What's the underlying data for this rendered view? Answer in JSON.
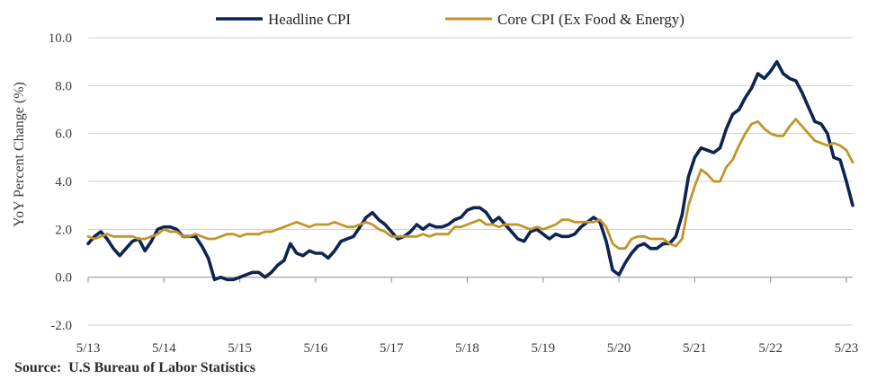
{
  "chart_data": {
    "type": "line",
    "ylabel": "YoY Percent Change (%)",
    "xlabel": "",
    "ylim": [
      -2.0,
      10.0
    ],
    "yticks": [
      -2.0,
      0.0,
      2.0,
      4.0,
      6.0,
      8.0,
      10.0
    ],
    "ytick_labels": [
      "-2.0",
      "0.0",
      "2.0",
      "4.0",
      "6.0",
      "8.0",
      "10.0"
    ],
    "xlim": [
      "2013-05",
      "2023-06"
    ],
    "xticks": [
      "2013-05",
      "2014-05",
      "2015-05",
      "2016-05",
      "2017-05",
      "2018-05",
      "2019-05",
      "2020-05",
      "2021-05",
      "2022-05",
      "2023-05"
    ],
    "xtick_labels": [
      "5/13",
      "5/14",
      "5/15",
      "5/16",
      "5/17",
      "5/18",
      "5/19",
      "5/20",
      "5/21",
      "5/22",
      "5/23"
    ],
    "grid": "horizontal",
    "legend": "top",
    "series": [
      {
        "name": "Headline CPI",
        "color": "#0d2452",
        "points": [
          [
            "2013-05",
            1.4
          ],
          [
            "2013-06",
            1.7
          ],
          [
            "2013-07",
            1.9
          ],
          [
            "2013-08",
            1.6
          ],
          [
            "2013-09",
            1.2
          ],
          [
            "2013-10",
            0.9
          ],
          [
            "2013-11",
            1.2
          ],
          [
            "2013-12",
            1.5
          ],
          [
            "2014-01",
            1.6
          ],
          [
            "2014-02",
            1.1
          ],
          [
            "2014-03",
            1.5
          ],
          [
            "2014-04",
            2.0
          ],
          [
            "2014-05",
            2.1
          ],
          [
            "2014-06",
            2.1
          ],
          [
            "2014-07",
            2.0
          ],
          [
            "2014-08",
            1.7
          ],
          [
            "2014-09",
            1.7
          ],
          [
            "2014-10",
            1.7
          ],
          [
            "2014-11",
            1.3
          ],
          [
            "2014-12",
            0.8
          ],
          [
            "2015-01",
            -0.1
          ],
          [
            "2015-02",
            0.0
          ],
          [
            "2015-03",
            -0.1
          ],
          [
            "2015-04",
            -0.1
          ],
          [
            "2015-05",
            0.0
          ],
          [
            "2015-06",
            0.1
          ],
          [
            "2015-07",
            0.2
          ],
          [
            "2015-08",
            0.2
          ],
          [
            "2015-09",
            0.0
          ],
          [
            "2015-10",
            0.2
          ],
          [
            "2015-11",
            0.5
          ],
          [
            "2015-12",
            0.7
          ],
          [
            "2016-01",
            1.4
          ],
          [
            "2016-02",
            1.0
          ],
          [
            "2016-03",
            0.9
          ],
          [
            "2016-04",
            1.1
          ],
          [
            "2016-05",
            1.0
          ],
          [
            "2016-06",
            1.0
          ],
          [
            "2016-07",
            0.8
          ],
          [
            "2016-08",
            1.1
          ],
          [
            "2016-09",
            1.5
          ],
          [
            "2016-10",
            1.6
          ],
          [
            "2016-11",
            1.7
          ],
          [
            "2016-12",
            2.1
          ],
          [
            "2017-01",
            2.5
          ],
          [
            "2017-02",
            2.7
          ],
          [
            "2017-03",
            2.4
          ],
          [
            "2017-04",
            2.2
          ],
          [
            "2017-05",
            1.9
          ],
          [
            "2017-06",
            1.6
          ],
          [
            "2017-07",
            1.7
          ],
          [
            "2017-08",
            1.9
          ],
          [
            "2017-09",
            2.2
          ],
          [
            "2017-10",
            2.0
          ],
          [
            "2017-11",
            2.2
          ],
          [
            "2017-12",
            2.1
          ],
          [
            "2018-01",
            2.1
          ],
          [
            "2018-02",
            2.2
          ],
          [
            "2018-03",
            2.4
          ],
          [
            "2018-04",
            2.5
          ],
          [
            "2018-05",
            2.8
          ],
          [
            "2018-06",
            2.9
          ],
          [
            "2018-07",
            2.9
          ],
          [
            "2018-08",
            2.7
          ],
          [
            "2018-09",
            2.3
          ],
          [
            "2018-10",
            2.5
          ],
          [
            "2018-11",
            2.2
          ],
          [
            "2018-12",
            1.9
          ],
          [
            "2019-01",
            1.6
          ],
          [
            "2019-02",
            1.5
          ],
          [
            "2019-03",
            1.9
          ],
          [
            "2019-04",
            2.0
          ],
          [
            "2019-05",
            1.8
          ],
          [
            "2019-06",
            1.6
          ],
          [
            "2019-07",
            1.8
          ],
          [
            "2019-08",
            1.7
          ],
          [
            "2019-09",
            1.7
          ],
          [
            "2019-10",
            1.8
          ],
          [
            "2019-11",
            2.1
          ],
          [
            "2019-12",
            2.3
          ],
          [
            "2020-01",
            2.5
          ],
          [
            "2020-02",
            2.3
          ],
          [
            "2020-03",
            1.5
          ],
          [
            "2020-04",
            0.3
          ],
          [
            "2020-05",
            0.1
          ],
          [
            "2020-06",
            0.6
          ],
          [
            "2020-07",
            1.0
          ],
          [
            "2020-08",
            1.3
          ],
          [
            "2020-09",
            1.4
          ],
          [
            "2020-10",
            1.2
          ],
          [
            "2020-11",
            1.2
          ],
          [
            "2020-12",
            1.4
          ],
          [
            "2021-01",
            1.4
          ],
          [
            "2021-02",
            1.7
          ],
          [
            "2021-03",
            2.6
          ],
          [
            "2021-04",
            4.2
          ],
          [
            "2021-05",
            5.0
          ],
          [
            "2021-06",
            5.4
          ],
          [
            "2021-07",
            5.3
          ],
          [
            "2021-08",
            5.2
          ],
          [
            "2021-09",
            5.4
          ],
          [
            "2021-10",
            6.2
          ],
          [
            "2021-11",
            6.8
          ],
          [
            "2021-12",
            7.0
          ],
          [
            "2022-01",
            7.5
          ],
          [
            "2022-02",
            7.9
          ],
          [
            "2022-03",
            8.5
          ],
          [
            "2022-04",
            8.3
          ],
          [
            "2022-05",
            8.6
          ],
          [
            "2022-06",
            9.0
          ],
          [
            "2022-07",
            8.5
          ],
          [
            "2022-08",
            8.3
          ],
          [
            "2022-09",
            8.2
          ],
          [
            "2022-10",
            7.7
          ],
          [
            "2022-11",
            7.1
          ],
          [
            "2022-12",
            6.5
          ],
          [
            "2023-01",
            6.4
          ],
          [
            "2023-02",
            6.0
          ],
          [
            "2023-03",
            5.0
          ],
          [
            "2023-04",
            4.9
          ],
          [
            "2023-05",
            4.0
          ],
          [
            "2023-06",
            3.0
          ]
        ]
      },
      {
        "name": "Core CPI (Ex Food & Energy)",
        "color": "#c39429",
        "points": [
          [
            "2013-05",
            1.7
          ],
          [
            "2013-06",
            1.6
          ],
          [
            "2013-07",
            1.7
          ],
          [
            "2013-08",
            1.8
          ],
          [
            "2013-09",
            1.7
          ],
          [
            "2013-10",
            1.7
          ],
          [
            "2013-11",
            1.7
          ],
          [
            "2013-12",
            1.7
          ],
          [
            "2014-01",
            1.6
          ],
          [
            "2014-02",
            1.6
          ],
          [
            "2014-03",
            1.7
          ],
          [
            "2014-04",
            1.8
          ],
          [
            "2014-05",
            2.0
          ],
          [
            "2014-06",
            1.9
          ],
          [
            "2014-07",
            1.9
          ],
          [
            "2014-08",
            1.7
          ],
          [
            "2014-09",
            1.7
          ],
          [
            "2014-10",
            1.8
          ],
          [
            "2014-11",
            1.7
          ],
          [
            "2014-12",
            1.6
          ],
          [
            "2015-01",
            1.6
          ],
          [
            "2015-02",
            1.7
          ],
          [
            "2015-03",
            1.8
          ],
          [
            "2015-04",
            1.8
          ],
          [
            "2015-05",
            1.7
          ],
          [
            "2015-06",
            1.8
          ],
          [
            "2015-07",
            1.8
          ],
          [
            "2015-08",
            1.8
          ],
          [
            "2015-09",
            1.9
          ],
          [
            "2015-10",
            1.9
          ],
          [
            "2015-11",
            2.0
          ],
          [
            "2015-12",
            2.1
          ],
          [
            "2016-01",
            2.2
          ],
          [
            "2016-02",
            2.3
          ],
          [
            "2016-03",
            2.2
          ],
          [
            "2016-04",
            2.1
          ],
          [
            "2016-05",
            2.2
          ],
          [
            "2016-06",
            2.2
          ],
          [
            "2016-07",
            2.2
          ],
          [
            "2016-08",
            2.3
          ],
          [
            "2016-09",
            2.2
          ],
          [
            "2016-10",
            2.1
          ],
          [
            "2016-11",
            2.1
          ],
          [
            "2016-12",
            2.2
          ],
          [
            "2017-01",
            2.3
          ],
          [
            "2017-02",
            2.2
          ],
          [
            "2017-03",
            2.0
          ],
          [
            "2017-04",
            1.9
          ],
          [
            "2017-05",
            1.7
          ],
          [
            "2017-06",
            1.7
          ],
          [
            "2017-07",
            1.7
          ],
          [
            "2017-08",
            1.7
          ],
          [
            "2017-09",
            1.7
          ],
          [
            "2017-10",
            1.8
          ],
          [
            "2017-11",
            1.7
          ],
          [
            "2017-12",
            1.8
          ],
          [
            "2018-01",
            1.8
          ],
          [
            "2018-02",
            1.8
          ],
          [
            "2018-03",
            2.1
          ],
          [
            "2018-04",
            2.1
          ],
          [
            "2018-05",
            2.2
          ],
          [
            "2018-06",
            2.3
          ],
          [
            "2018-07",
            2.4
          ],
          [
            "2018-08",
            2.2
          ],
          [
            "2018-09",
            2.2
          ],
          [
            "2018-10",
            2.1
          ],
          [
            "2018-11",
            2.2
          ],
          [
            "2018-12",
            2.2
          ],
          [
            "2019-01",
            2.2
          ],
          [
            "2019-02",
            2.1
          ],
          [
            "2019-03",
            2.0
          ],
          [
            "2019-04",
            2.1
          ],
          [
            "2019-05",
            2.0
          ],
          [
            "2019-06",
            2.1
          ],
          [
            "2019-07",
            2.2
          ],
          [
            "2019-08",
            2.4
          ],
          [
            "2019-09",
            2.4
          ],
          [
            "2019-10",
            2.3
          ],
          [
            "2019-11",
            2.3
          ],
          [
            "2019-12",
            2.3
          ],
          [
            "2020-01",
            2.3
          ],
          [
            "2020-02",
            2.4
          ],
          [
            "2020-03",
            2.1
          ],
          [
            "2020-04",
            1.4
          ],
          [
            "2020-05",
            1.2
          ],
          [
            "2020-06",
            1.2
          ],
          [
            "2020-07",
            1.6
          ],
          [
            "2020-08",
            1.7
          ],
          [
            "2020-09",
            1.7
          ],
          [
            "2020-10",
            1.6
          ],
          [
            "2020-11",
            1.6
          ],
          [
            "2020-12",
            1.6
          ],
          [
            "2021-01",
            1.4
          ],
          [
            "2021-02",
            1.3
          ],
          [
            "2021-03",
            1.6
          ],
          [
            "2021-04",
            3.0
          ],
          [
            "2021-05",
            3.8
          ],
          [
            "2021-06",
            4.5
          ],
          [
            "2021-07",
            4.3
          ],
          [
            "2021-08",
            4.0
          ],
          [
            "2021-09",
            4.0
          ],
          [
            "2021-10",
            4.6
          ],
          [
            "2021-11",
            4.9
          ],
          [
            "2021-12",
            5.5
          ],
          [
            "2022-01",
            6.0
          ],
          [
            "2022-02",
            6.4
          ],
          [
            "2022-03",
            6.5
          ],
          [
            "2022-04",
            6.2
          ],
          [
            "2022-05",
            6.0
          ],
          [
            "2022-06",
            5.9
          ],
          [
            "2022-07",
            5.9
          ],
          [
            "2022-08",
            6.3
          ],
          [
            "2022-09",
            6.6
          ],
          [
            "2022-10",
            6.3
          ],
          [
            "2022-11",
            6.0
          ],
          [
            "2022-12",
            5.7
          ],
          [
            "2023-01",
            5.6
          ],
          [
            "2023-02",
            5.5
          ],
          [
            "2023-03",
            5.6
          ],
          [
            "2023-04",
            5.5
          ],
          [
            "2023-05",
            5.3
          ],
          [
            "2023-06",
            4.8
          ]
        ]
      }
    ]
  },
  "footer": {
    "source": "Source:  U.S Bureau of Labor Statistics"
  }
}
